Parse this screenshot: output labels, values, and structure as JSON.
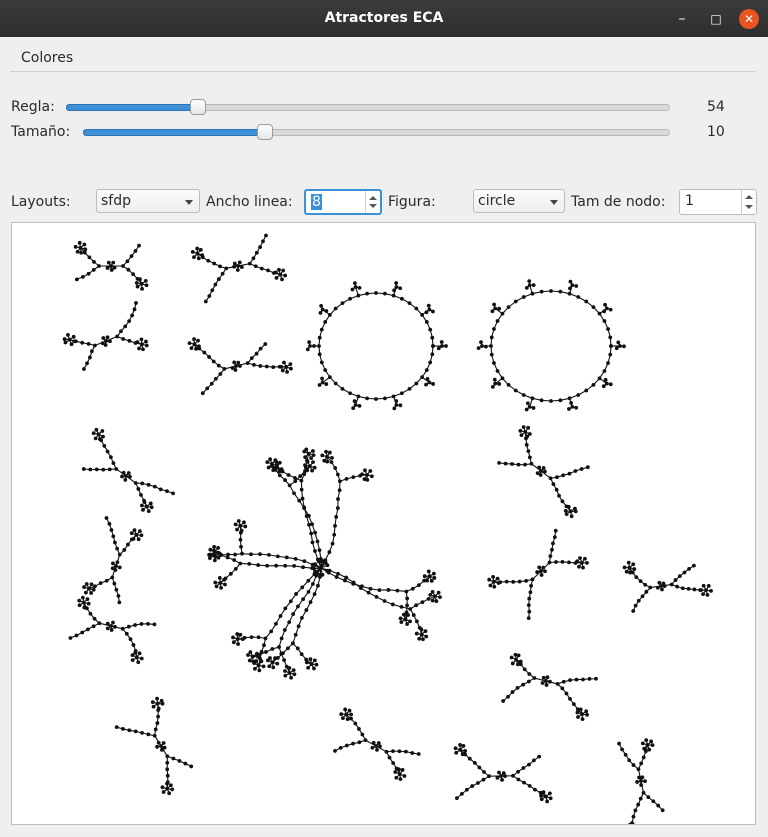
{
  "window": {
    "title": "Atractores ECA",
    "minimize_symbol": "–",
    "maximize_symbol": "□",
    "close_symbol": "✕"
  },
  "menubar": {
    "items": [
      {
        "label": "Colores"
      }
    ]
  },
  "controls": {
    "rule": {
      "label": "Regla:",
      "value": "54",
      "fraction": 0.211
    },
    "size": {
      "label": "Tamaño:",
      "value": "10",
      "fraction": 0.304
    }
  },
  "toolbar": {
    "layouts_label": "Layouts:",
    "layouts_value": "sfdp",
    "line_width_label": "Ancho linea:",
    "line_width_value": "8",
    "shape_label": "Figura:",
    "shape_value": "circle",
    "node_size_label": "Tam de nodo:",
    "node_size_value": "1"
  },
  "graph": {
    "description_icon": "graph-drawing-icon",
    "edge_color": "#111111",
    "node_color": "#111111"
  }
}
